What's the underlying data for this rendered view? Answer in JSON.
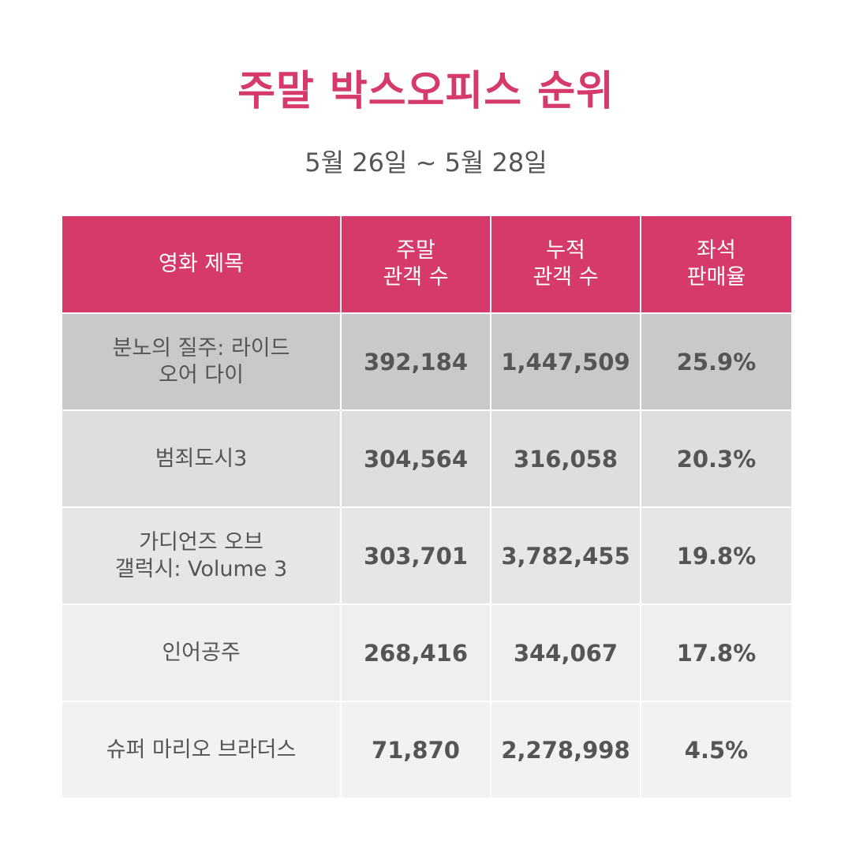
{
  "title": "주말 박스오피스 순위",
  "subtitle": "5월 26일 ~ 5월 28일",
  "colors": {
    "accent": "#d63a6a",
    "header_bg": "#d63a6a",
    "text": "#555555",
    "row_top": "#c9c9c9",
    "row_2": "#dedede",
    "row_3": "#e6e6e6",
    "row_4": "#efefef",
    "row_5": "#f2f2f2"
  },
  "chart_data": {
    "type": "table",
    "title": "주말 박스오피스 순위",
    "subtitle": "5월 26일 ~ 5월 28일",
    "columns": [
      {
        "lines": [
          "영화 제목"
        ]
      },
      {
        "lines": [
          "주말",
          "관객 수"
        ]
      },
      {
        "lines": [
          "누적",
          "관객 수"
        ]
      },
      {
        "lines": [
          "좌석",
          "판매율"
        ]
      }
    ],
    "rows": [
      {
        "title_lines": [
          "분노의 질주: 라이드",
          "오어 다이"
        ],
        "weekend": "392,184",
        "cumulative": "1,447,509",
        "seat_rate": "25.9%"
      },
      {
        "title_lines": [
          "범죄도시3"
        ],
        "weekend": "304,564",
        "cumulative": "316,058",
        "seat_rate": "20.3%"
      },
      {
        "title_lines": [
          "가디언즈 오브",
          "갤럭시: Volume 3"
        ],
        "weekend": "303,701",
        "cumulative": "3,782,455",
        "seat_rate": "19.8%"
      },
      {
        "title_lines": [
          "인어공주"
        ],
        "weekend": "268,416",
        "cumulative": "344,067",
        "seat_rate": "17.8%"
      },
      {
        "title_lines": [
          "슈퍼 마리오 브라더스"
        ],
        "weekend": "71,870",
        "cumulative": "2,278,998",
        "seat_rate": "4.5%"
      }
    ]
  }
}
